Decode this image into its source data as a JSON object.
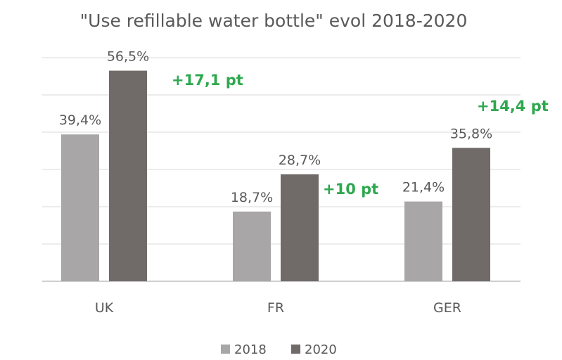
{
  "chart_data": {
    "type": "bar",
    "title": "\"Use refillable water bottle\" evol 2018-2020",
    "categories": [
      "UK",
      "FR",
      "GER"
    ],
    "series": [
      {
        "name": "2018",
        "values": [
          39.4,
          18.7,
          21.4
        ],
        "labels": [
          "39,4%",
          "18,7%",
          "21,4%"
        ]
      },
      {
        "name": "2020",
        "values": [
          56.5,
          28.7,
          35.8
        ],
        "labels": [
          "56,5%",
          "28,7%",
          "35,8%"
        ]
      }
    ],
    "annotations": [
      "+17,1 pt",
      "+10 pt",
      "+14,4 pt"
    ],
    "ylim": [
      0,
      60
    ],
    "grid": true,
    "legend": "bottom",
    "colors": {
      "series_2018": "#a8a6a6",
      "series_2020": "#706a69",
      "annotation": "#2ea84f"
    }
  }
}
